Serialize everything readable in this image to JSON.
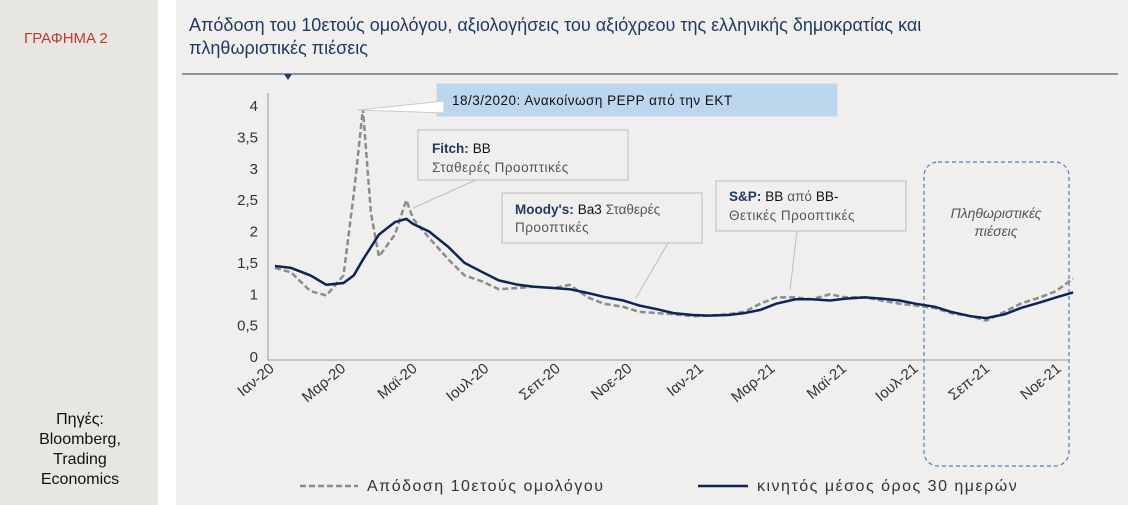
{
  "figure_label": "ΓΡΑΦΗΜΑ 2",
  "title_line1": "Απόδοση του 10ετούς ομολόγου, αξιολογήσεις του αξιόχρεου της ελληνικής δημοκρατίας  και",
  "title_line2": "πληθωριστικές πιέσεις",
  "sources": [
    "Πηγές:",
    "Bloomberg,",
    "Trading",
    "Economics"
  ],
  "annotations": {
    "pepp": "18/3/2020: Ανακοίνωση PEPP από την ΕΚΤ",
    "fitch_agency": "Fitch:",
    "fitch_rating": "BB",
    "fitch_outlook": "Σταθερές Προοπτικές",
    "moodys_agency": "Moody's:",
    "moodys_rating": "Ba3",
    "moodys_outlook1": "Σταθερές",
    "moodys_outlook2": "Προοπτικές",
    "sp_agency": "S&P:",
    "sp_rating": "BB",
    "sp_from": "από",
    "sp_prev": "BB-",
    "sp_outlook": "Θετικές Προοπτικές",
    "inflation_line1": "Πληθωριστικές",
    "inflation_line2": "πιέσεις"
  },
  "colors": {
    "yield_line": "#8c8c8c",
    "moving_average": "#0f2456",
    "callout_fill": "#bcd6ee",
    "figure_label": "#c0392b",
    "title": "#1f3a64"
  },
  "chart_data": {
    "type": "line",
    "ylim": [
      0,
      4
    ],
    "yticks": [
      "0",
      "0,5",
      "1",
      "1,5",
      "2",
      "2,5",
      "3",
      "3,5",
      "4"
    ],
    "xticks": [
      "Ιαν-20",
      "Μαρ-20",
      "Μαϊ-20",
      "Ιουλ-20",
      "Σεπ-20",
      "Νοε-20",
      "Ιαν-21",
      "Μαρ-21",
      "Μαϊ-21",
      "Ιουλ-21",
      "Σεπ-21",
      "Νοε-21"
    ],
    "x": [
      "2020-01-01",
      "2020-01-15",
      "2020-02-01",
      "2020-02-15",
      "2020-03-01",
      "2020-03-10",
      "2020-03-18",
      "2020-03-25",
      "2020-04-01",
      "2020-04-15",
      "2020-04-25",
      "2020-05-01",
      "2020-05-15",
      "2020-06-01",
      "2020-06-15",
      "2020-07-01",
      "2020-07-15",
      "2020-08-01",
      "2020-08-15",
      "2020-09-01",
      "2020-09-15",
      "2020-10-01",
      "2020-10-15",
      "2020-11-01",
      "2020-11-15",
      "2020-12-01",
      "2020-12-15",
      "2021-01-01",
      "2021-01-15",
      "2021-02-01",
      "2021-02-15",
      "2021-03-01",
      "2021-03-15",
      "2021-04-01",
      "2021-04-15",
      "2021-05-01",
      "2021-05-15",
      "2021-06-01",
      "2021-06-15",
      "2021-07-01",
      "2021-07-15",
      "2021-08-01",
      "2021-08-15",
      "2021-09-01",
      "2021-09-15",
      "2021-10-01",
      "2021-10-15",
      "2021-11-01",
      "2021-11-15",
      "2021-11-30"
    ],
    "series": [
      {
        "name": "Απόδοση  10ετούς  ομολόγου",
        "values": [
          1.42,
          1.35,
          1.05,
          0.98,
          1.3,
          2.6,
          3.95,
          2.3,
          1.6,
          1.95,
          2.5,
          2.2,
          1.9,
          1.55,
          1.3,
          1.2,
          1.08,
          1.1,
          1.12,
          1.1,
          1.15,
          0.95,
          0.85,
          0.8,
          0.72,
          0.7,
          0.68,
          0.65,
          0.66,
          0.68,
          0.72,
          0.85,
          0.95,
          0.95,
          0.92,
          1.0,
          0.95,
          0.95,
          0.9,
          0.85,
          0.82,
          0.78,
          0.7,
          0.65,
          0.58,
          0.72,
          0.85,
          0.95,
          1.05,
          1.25
        ]
      },
      {
        "name": "κινητός  μέσος  όρος  30  ημερών",
        "values": [
          1.45,
          1.42,
          1.3,
          1.15,
          1.18,
          1.3,
          1.55,
          1.75,
          1.95,
          2.15,
          2.2,
          2.12,
          2.0,
          1.75,
          1.5,
          1.35,
          1.22,
          1.15,
          1.12,
          1.1,
          1.08,
          1.02,
          0.96,
          0.9,
          0.82,
          0.76,
          0.7,
          0.67,
          0.66,
          0.67,
          0.7,
          0.75,
          0.85,
          0.92,
          0.92,
          0.9,
          0.93,
          0.95,
          0.93,
          0.9,
          0.85,
          0.8,
          0.72,
          0.65,
          0.62,
          0.68,
          0.78,
          0.87,
          0.95,
          1.03
        ]
      }
    ]
  }
}
